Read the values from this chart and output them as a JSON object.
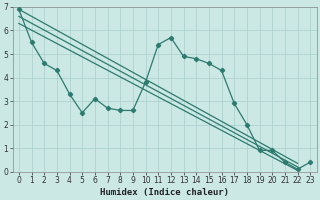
{
  "xlabel": "Humidex (Indice chaleur)",
  "background_color": "#cce8e5",
  "grid_color": "#aacfcc",
  "line_color": "#2d7a6e",
  "x_data": [
    0,
    1,
    2,
    3,
    4,
    5,
    6,
    7,
    8,
    9,
    10,
    11,
    12,
    13,
    14,
    15,
    16,
    17,
    18,
    19,
    20,
    21,
    22,
    23
  ],
  "main_y": [
    6.9,
    5.5,
    4.6,
    4.3,
    3.3,
    2.5,
    3.1,
    2.7,
    2.6,
    2.6,
    3.8,
    5.4,
    5.7,
    4.9,
    4.8,
    4.6,
    4.3,
    2.9,
    2.0,
    0.9,
    0.9,
    0.4,
    0.1,
    0.4
  ],
  "reg1_start": 6.9,
  "reg1_end": 0.35,
  "reg2_start": 6.6,
  "reg2_end": 0.2,
  "reg3_start": 6.3,
  "reg3_end": 0.05,
  "reg_x_start": 0,
  "reg_x_end": 22,
  "xlim": [
    -0.5,
    23.5
  ],
  "ylim": [
    0,
    7
  ],
  "xticks": [
    0,
    1,
    2,
    3,
    4,
    5,
    6,
    7,
    8,
    9,
    10,
    11,
    12,
    13,
    14,
    15,
    16,
    17,
    18,
    19,
    20,
    21,
    22,
    23
  ],
  "yticks": [
    0,
    1,
    2,
    3,
    4,
    5,
    6,
    7
  ],
  "tick_fontsize": 5.5,
  "xlabel_fontsize": 6.5
}
